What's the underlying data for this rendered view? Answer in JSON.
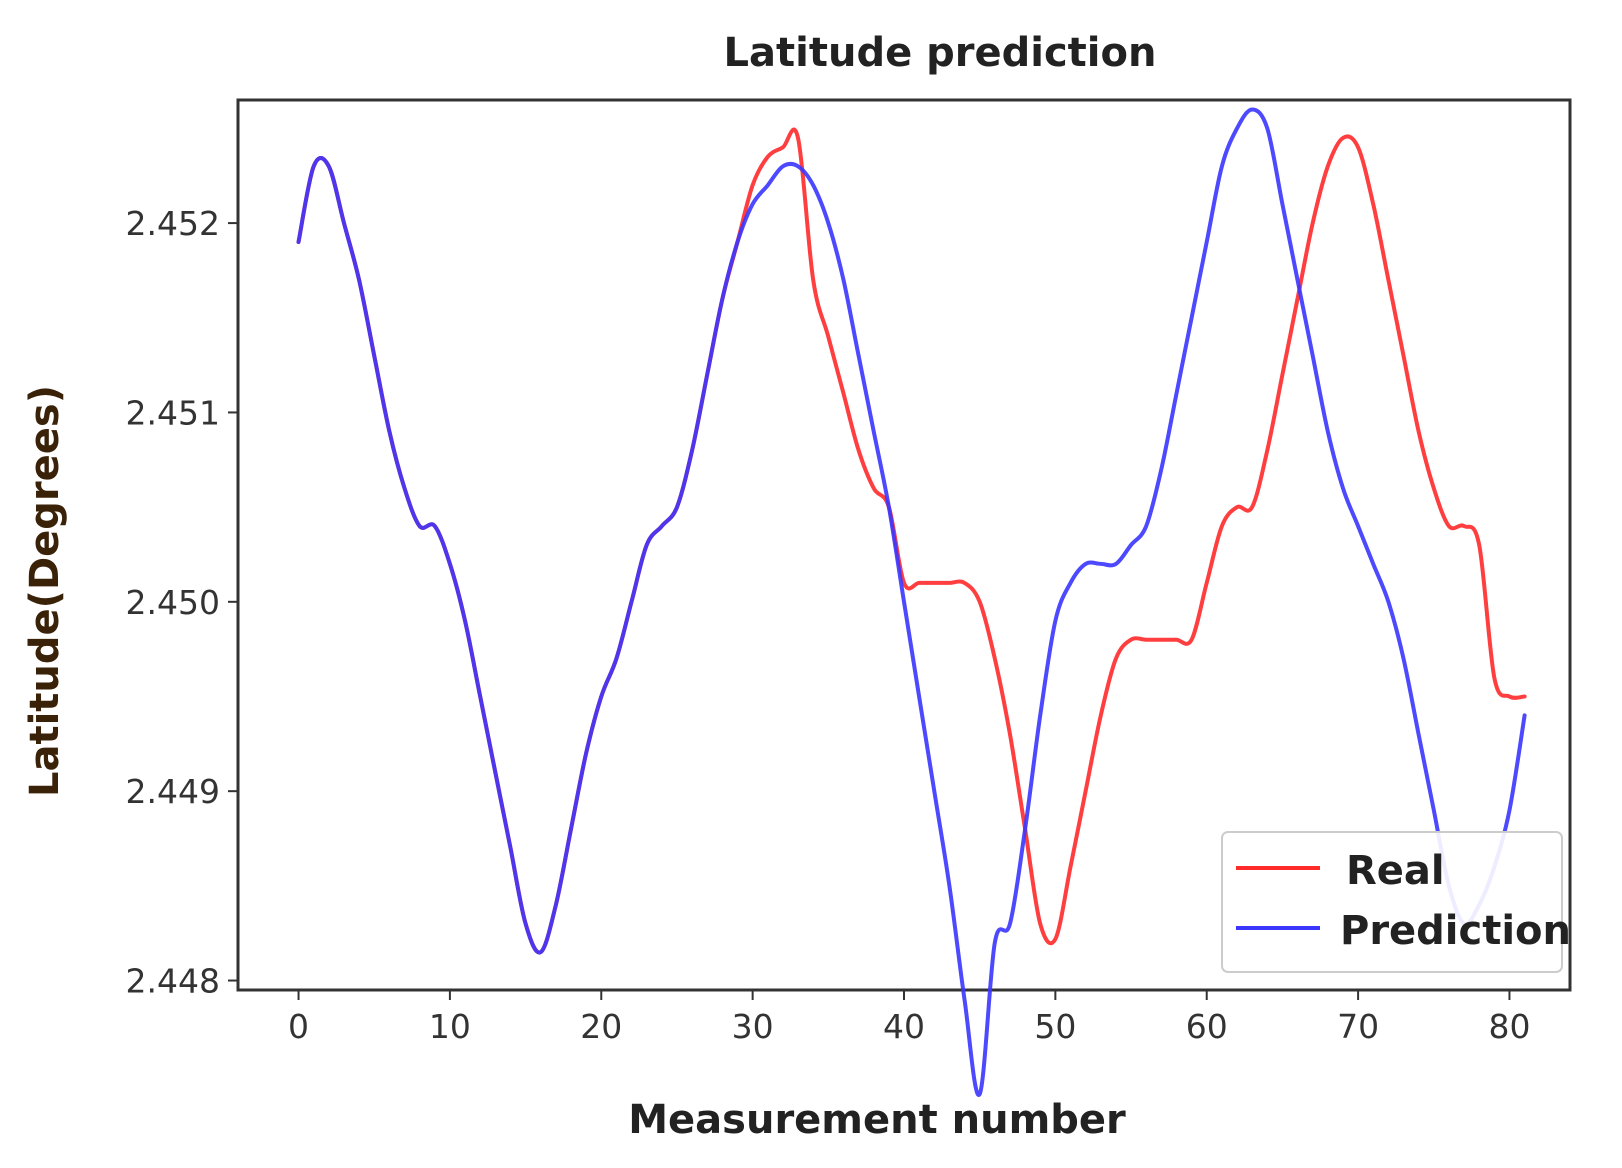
{
  "chart_data": {
    "type": "line",
    "title": "Latitude prediction",
    "xlabel": "Measurement number",
    "ylabel": "Latitude(Degrees)",
    "xlim": [
      -4,
      84
    ],
    "ylim": [
      2.44795,
      2.45265
    ],
    "xticks": [
      0,
      10,
      20,
      30,
      40,
      50,
      60,
      70,
      80
    ],
    "xtick_labels": [
      "0",
      "10",
      "20",
      "30",
      "40",
      "50",
      "60",
      "70",
      "80"
    ],
    "yticks": [
      2.448,
      2.449,
      2.45,
      2.451,
      2.452
    ],
    "ytick_labels": [
      "2.448",
      "2.449",
      "2.450",
      "2.451",
      "2.452"
    ],
    "legend_position": "lower-right",
    "series": [
      {
        "name": "Real",
        "color": "#ff2a2a",
        "points": [
          [
            0,
            2.4519
          ],
          [
            1,
            2.4523
          ],
          [
            2,
            2.4523
          ],
          [
            3,
            2.452
          ],
          [
            4,
            2.4517
          ],
          [
            5,
            2.4513
          ],
          [
            6,
            2.4509
          ],
          [
            7,
            2.4506
          ],
          [
            8,
            2.4504
          ],
          [
            9,
            2.4504
          ],
          [
            10,
            2.4502
          ],
          [
            11,
            2.4499
          ],
          [
            12,
            2.4495
          ],
          [
            13,
            2.4491
          ],
          [
            14,
            2.4487
          ],
          [
            15,
            2.4483
          ],
          [
            16,
            2.44815
          ],
          [
            17,
            2.4484
          ],
          [
            18,
            2.4488
          ],
          [
            19,
            2.4492
          ],
          [
            20,
            2.4495
          ],
          [
            21,
            2.4497
          ],
          [
            22,
            2.45
          ],
          [
            23,
            2.4503
          ],
          [
            24,
            2.4504
          ],
          [
            25,
            2.4505
          ],
          [
            26,
            2.4508
          ],
          [
            27,
            2.4512
          ],
          [
            28,
            2.4516
          ],
          [
            29,
            2.4519
          ],
          [
            30,
            2.4522
          ],
          [
            31,
            2.45235
          ],
          [
            32,
            2.4524
          ],
          [
            33,
            2.45245
          ],
          [
            34,
            2.4517
          ],
          [
            35,
            2.4514
          ],
          [
            36,
            2.4511
          ],
          [
            37,
            2.4508
          ],
          [
            38,
            2.4506
          ],
          [
            39,
            2.4505
          ],
          [
            40,
            2.4501
          ],
          [
            41,
            2.4501
          ],
          [
            42,
            2.4501
          ],
          [
            43,
            2.4501
          ],
          [
            44,
            2.4501
          ],
          [
            45,
            2.45
          ],
          [
            46,
            2.4497
          ],
          [
            47,
            2.4493
          ],
          [
            48,
            2.4488
          ],
          [
            49,
            2.4483
          ],
          [
            50,
            2.44822
          ],
          [
            51,
            2.4486
          ],
          [
            52,
            2.449
          ],
          [
            53,
            2.4494
          ],
          [
            54,
            2.4497
          ],
          [
            55,
            2.4498
          ],
          [
            56,
            2.4498
          ],
          [
            57,
            2.4498
          ],
          [
            58,
            2.4498
          ],
          [
            59,
            2.4498
          ],
          [
            60,
            2.4501
          ],
          [
            61,
            2.4504
          ],
          [
            62,
            2.4505
          ],
          [
            63,
            2.4505
          ],
          [
            64,
            2.4508
          ],
          [
            65,
            2.4512
          ],
          [
            66,
            2.4516
          ],
          [
            67,
            2.452
          ],
          [
            68,
            2.4523
          ],
          [
            69,
            2.45245
          ],
          [
            70,
            2.4524
          ],
          [
            71,
            2.4521
          ],
          [
            72,
            2.4517
          ],
          [
            73,
            2.4513
          ],
          [
            74,
            2.4509
          ],
          [
            75,
            2.4506
          ],
          [
            76,
            2.4504
          ],
          [
            77,
            2.4504
          ],
          [
            78,
            2.4503
          ],
          [
            79,
            2.4496
          ],
          [
            80,
            2.4495
          ],
          [
            81,
            2.4495
          ]
        ]
      },
      {
        "name": "Prediction",
        "color": "#3a35ff",
        "points": [
          [
            0,
            2.4519
          ],
          [
            1,
            2.4523
          ],
          [
            2,
            2.4523
          ],
          [
            3,
            2.452
          ],
          [
            4,
            2.4517
          ],
          [
            5,
            2.4513
          ],
          [
            6,
            2.4509
          ],
          [
            7,
            2.4506
          ],
          [
            8,
            2.4504
          ],
          [
            9,
            2.4504
          ],
          [
            10,
            2.4502
          ],
          [
            11,
            2.4499
          ],
          [
            12,
            2.4495
          ],
          [
            13,
            2.4491
          ],
          [
            14,
            2.4487
          ],
          [
            15,
            2.4483
          ],
          [
            16,
            2.44815
          ],
          [
            17,
            2.4484
          ],
          [
            18,
            2.4488
          ],
          [
            19,
            2.4492
          ],
          [
            20,
            2.4495
          ],
          [
            21,
            2.4497
          ],
          [
            22,
            2.45
          ],
          [
            23,
            2.4503
          ],
          [
            24,
            2.4504
          ],
          [
            25,
            2.4505
          ],
          [
            26,
            2.4508
          ],
          [
            27,
            2.4512
          ],
          [
            28,
            2.4516
          ],
          [
            29,
            2.4519
          ],
          [
            30,
            2.4521
          ],
          [
            31,
            2.4522
          ],
          [
            32,
            2.4523
          ],
          [
            33,
            2.4523
          ],
          [
            34,
            2.4522
          ],
          [
            35,
            2.452
          ],
          [
            36,
            2.4517
          ],
          [
            37,
            2.4513
          ],
          [
            38,
            2.4509
          ],
          [
            39,
            2.4505
          ],
          [
            40,
            2.45
          ],
          [
            41,
            2.4495
          ],
          [
            42,
            2.449
          ],
          [
            43,
            2.4485
          ],
          [
            44,
            2.4479
          ],
          [
            45,
            2.4474
          ],
          [
            46,
            2.4482
          ],
          [
            47,
            2.4483
          ],
          [
            48,
            2.4488
          ],
          [
            49,
            2.4494
          ],
          [
            50,
            2.4499
          ],
          [
            51,
            2.4501
          ],
          [
            52,
            2.4502
          ],
          [
            53,
            2.4502
          ],
          [
            54,
            2.4502
          ],
          [
            55,
            2.4503
          ],
          [
            56,
            2.4504
          ],
          [
            57,
            2.4507
          ],
          [
            58,
            2.4511
          ],
          [
            59,
            2.4515
          ],
          [
            60,
            2.4519
          ],
          [
            61,
            2.4523
          ],
          [
            62,
            2.4525
          ],
          [
            63,
            2.4526
          ],
          [
            64,
            2.4525
          ],
          [
            65,
            2.4521
          ],
          [
            66,
            2.4517
          ],
          [
            67,
            2.4513
          ],
          [
            68,
            2.4509
          ],
          [
            69,
            2.4506
          ],
          [
            70,
            2.4504
          ],
          [
            71,
            2.4502
          ],
          [
            72,
            2.45
          ],
          [
            73,
            2.4497
          ],
          [
            74,
            2.4493
          ],
          [
            75,
            2.4489
          ],
          [
            76,
            2.4485
          ],
          [
            77,
            2.4483
          ],
          [
            78,
            2.4484
          ],
          [
            79,
            2.4486
          ],
          [
            80,
            2.4489
          ],
          [
            81,
            2.4494
          ]
        ]
      }
    ]
  }
}
